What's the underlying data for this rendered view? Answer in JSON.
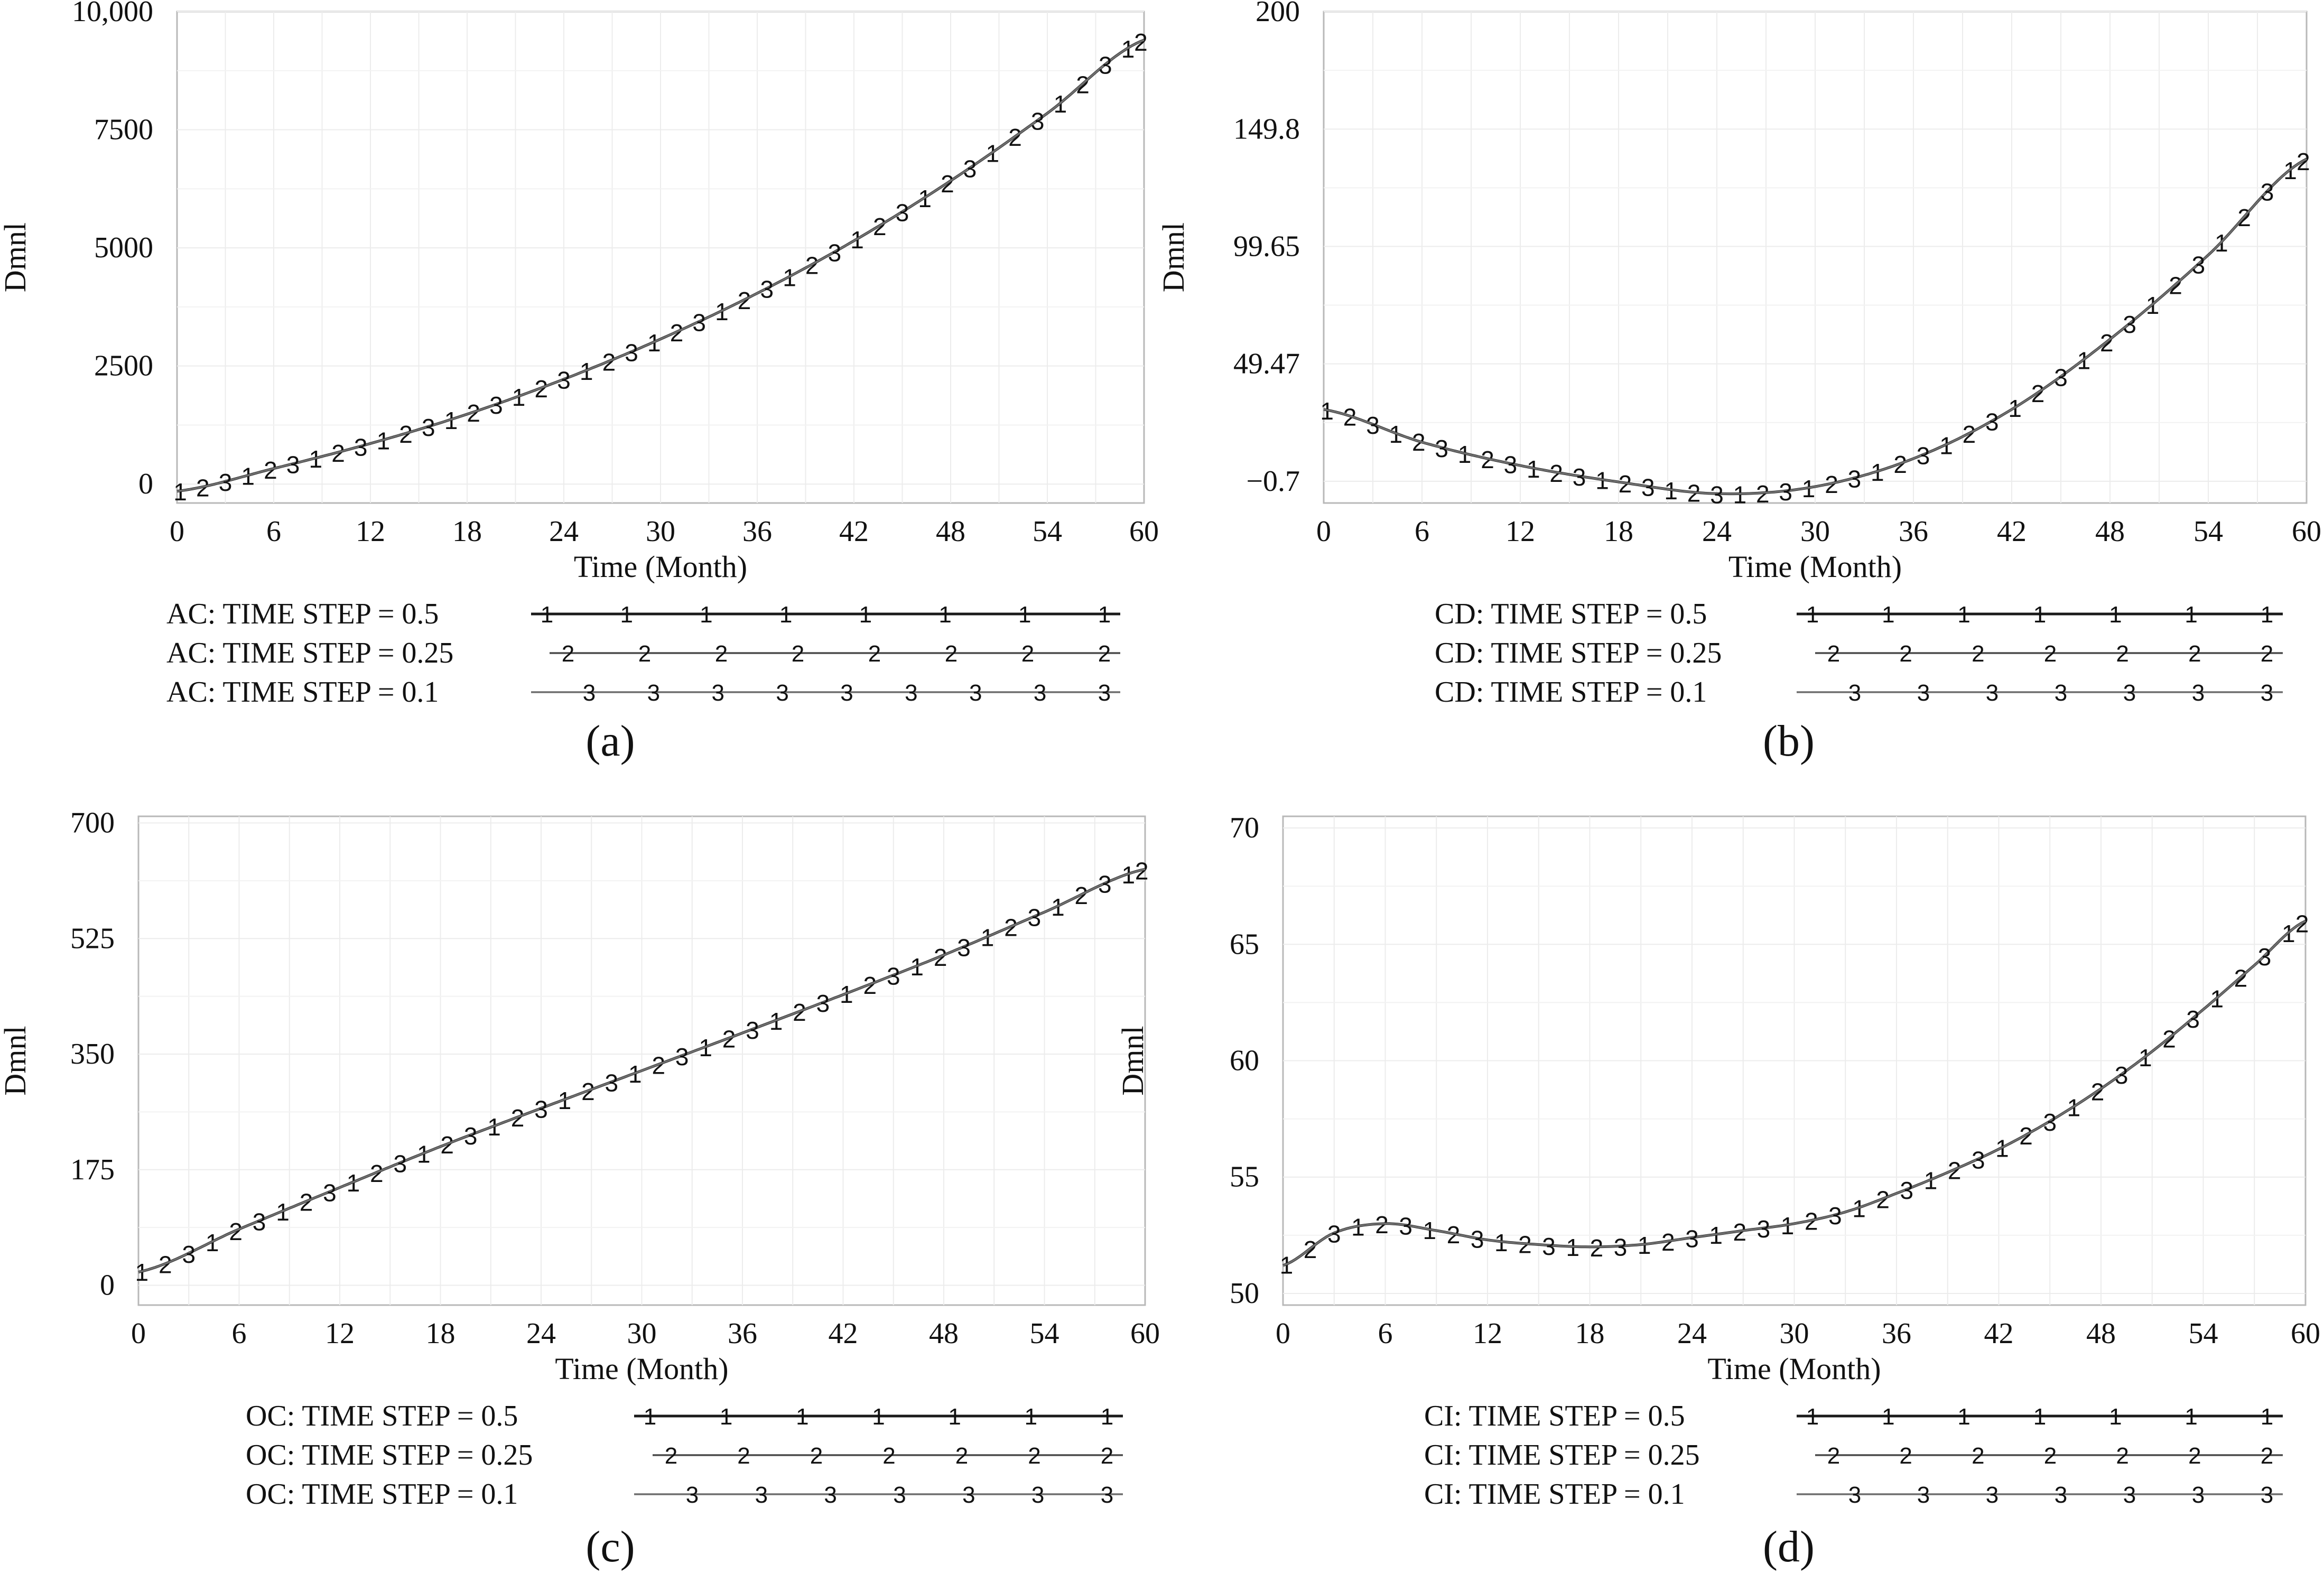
{
  "chart_data": [
    {
      "panel_label": "(a)",
      "type": "line",
      "xlabel": "Time (Month)",
      "ylabel": "Dmnl",
      "xlim": [
        0,
        60
      ],
      "ylim": [
        -400,
        10000
      ],
      "xticks": [
        0,
        6,
        12,
        18,
        24,
        30,
        36,
        42,
        48,
        54,
        60
      ],
      "yticks": [
        {
          "value": 0,
          "label": "0"
        },
        {
          "value": 2500,
          "label": "2500"
        },
        {
          "value": 5000,
          "label": "5000"
        },
        {
          "value": 7500,
          "label": "7500"
        },
        {
          "value": 10000,
          "label": "10,000"
        }
      ],
      "grid": true,
      "x": [
        0,
        6,
        12,
        18,
        24,
        30,
        36,
        42,
        48,
        54,
        60
      ],
      "series": [
        {
          "name": "AC: TIME STEP = 0.5",
          "marker": "1",
          "color": "#1a1a1a",
          "values": [
            -150,
            330,
            860,
            1480,
            2220,
            3070,
            4040,
            5150,
            6420,
            7850,
            9400
          ]
        },
        {
          "name": "AC: TIME STEP = 0.25",
          "marker": "2",
          "color": "#4a4a4a",
          "values": [
            -150,
            330,
            860,
            1480,
            2220,
            3070,
            4040,
            5150,
            6420,
            7850,
            9400
          ]
        },
        {
          "name": "AC: TIME STEP = 0.1",
          "marker": "3",
          "color": "#6e6e6e",
          "values": [
            -150,
            330,
            860,
            1480,
            2220,
            3070,
            4040,
            5150,
            6420,
            7850,
            9400
          ]
        }
      ]
    },
    {
      "panel_label": "(b)",
      "type": "line",
      "xlabel": "Time (Month)",
      "ylabel": "Dmnl",
      "xlim": [
        0,
        60
      ],
      "ylim": [
        -10,
        200
      ],
      "xticks": [
        0,
        6,
        12,
        18,
        24,
        30,
        36,
        42,
        48,
        54,
        60
      ],
      "yticks": [
        {
          "value": -0.7,
          "label": "−0.7"
        },
        {
          "value": 49.47,
          "label": "49.47"
        },
        {
          "value": 99.65,
          "label": "99.65"
        },
        {
          "value": 149.8,
          "label": "149.8"
        },
        {
          "value": 200,
          "label": "200"
        }
      ],
      "grid": true,
      "x": [
        0,
        6,
        12,
        18,
        24,
        30,
        36,
        42,
        48,
        54,
        60
      ],
      "series": [
        {
          "name": "CD: TIME STEP = 0.5",
          "marker": "1",
          "color": "#1a1a1a",
          "values": [
            30,
            16,
            6,
            -1,
            -6,
            -3,
            9,
            30,
            60,
            96,
            137
          ]
        },
        {
          "name": "CD: TIME STEP = 0.25",
          "marker": "2",
          "color": "#4a4a4a",
          "values": [
            30,
            16,
            6,
            -1,
            -6,
            -3,
            9,
            30,
            60,
            96,
            137
          ]
        },
        {
          "name": "CD: TIME STEP = 0.1",
          "marker": "3",
          "color": "#6e6e6e",
          "values": [
            30,
            16,
            6,
            -1,
            -6,
            -3,
            9,
            30,
            60,
            96,
            137
          ]
        }
      ]
    },
    {
      "panel_label": "(c)",
      "type": "line",
      "xlabel": "Time (Month)",
      "ylabel": "Dmnl",
      "xlim": [
        0,
        60
      ],
      "ylim": [
        -30,
        710
      ],
      "xticks": [
        0,
        6,
        12,
        18,
        24,
        30,
        36,
        42,
        48,
        54,
        60
      ],
      "yticks": [
        {
          "value": 0,
          "label": "0"
        },
        {
          "value": 175,
          "label": "175"
        },
        {
          "value": 350,
          "label": "350"
        },
        {
          "value": 525,
          "label": "525"
        },
        {
          "value": 700,
          "label": "700"
        }
      ],
      "grid": true,
      "x": [
        0,
        6,
        12,
        18,
        24,
        30,
        36,
        42,
        48,
        54,
        60
      ],
      "series": [
        {
          "name": "OC: TIME STEP = 0.5",
          "marker": "1",
          "color": "#1a1a1a",
          "values": [
            20,
            85,
            148,
            210,
            268,
            325,
            382,
            440,
            500,
            565,
            630
          ]
        },
        {
          "name": "OC: TIME STEP = 0.25",
          "marker": "2",
          "color": "#4a4a4a",
          "values": [
            20,
            85,
            148,
            210,
            268,
            325,
            382,
            440,
            500,
            565,
            630
          ]
        },
        {
          "name": "OC: TIME STEP = 0.1",
          "marker": "3",
          "color": "#6e6e6e",
          "values": [
            20,
            85,
            148,
            210,
            268,
            325,
            382,
            440,
            500,
            565,
            630
          ]
        }
      ]
    },
    {
      "panel_label": "(d)",
      "type": "line",
      "xlabel": "Time (Month)",
      "ylabel": "Dmnl",
      "xlim": [
        0,
        60
      ],
      "ylim": [
        49.5,
        70.5
      ],
      "xticks": [
        0,
        6,
        12,
        18,
        24,
        30,
        36,
        42,
        48,
        54,
        60
      ],
      "yticks": [
        {
          "value": 50,
          "label": "50"
        },
        {
          "value": 55,
          "label": "55"
        },
        {
          "value": 60,
          "label": "60"
        },
        {
          "value": 65,
          "label": "65"
        },
        {
          "value": 70,
          "label": "70"
        }
      ],
      "grid": true,
      "x": [
        0,
        3,
        6,
        9,
        12,
        15,
        18,
        21,
        24,
        27,
        30,
        33,
        36,
        39,
        42,
        45,
        48,
        51,
        54,
        57,
        60
      ],
      "series": [
        {
          "name": "CI: TIME STEP = 0.5",
          "marker": "1",
          "color": "#1a1a1a",
          "values": [
            51.2,
            52.6,
            53.0,
            52.7,
            52.3,
            52.1,
            52.0,
            52.1,
            52.4,
            52.7,
            53.0,
            53.5,
            54.3,
            55.2,
            56.2,
            57.4,
            58.8,
            60.4,
            62.2,
            64.1,
            66.0
          ]
        },
        {
          "name": "CI: TIME STEP = 0.25",
          "marker": "2",
          "color": "#4a4a4a",
          "values": [
            51.2,
            52.6,
            53.0,
            52.7,
            52.3,
            52.1,
            52.0,
            52.1,
            52.4,
            52.7,
            53.0,
            53.5,
            54.3,
            55.2,
            56.2,
            57.4,
            58.8,
            60.4,
            62.2,
            64.1,
            66.0
          ]
        },
        {
          "name": "CI: TIME STEP = 0.1",
          "marker": "3",
          "color": "#6e6e6e",
          "values": [
            51.2,
            52.6,
            53.0,
            52.7,
            52.3,
            52.1,
            52.0,
            52.1,
            52.4,
            52.7,
            53.0,
            53.5,
            54.3,
            55.2,
            56.2,
            57.4,
            58.8,
            60.4,
            62.2,
            64.1,
            66.0
          ]
        }
      ]
    }
  ]
}
